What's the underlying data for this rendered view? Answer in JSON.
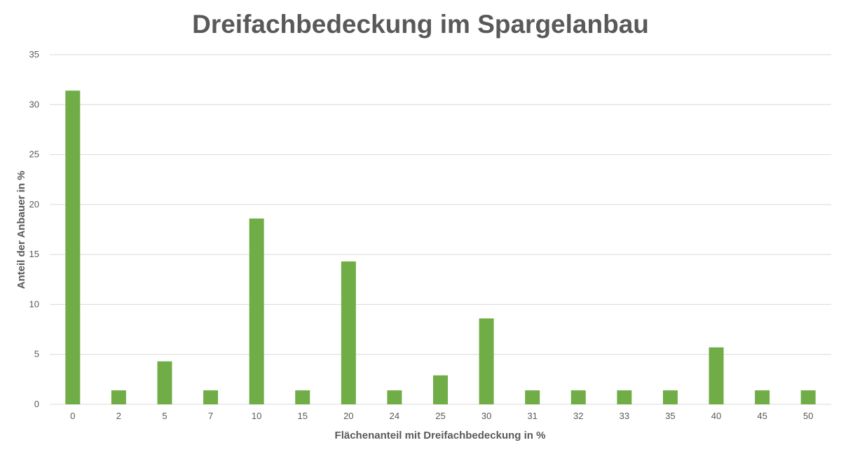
{
  "chart_data": {
    "type": "bar",
    "title": "Dreifachbedeckung im Spargelanbau",
    "xlabel": "Flächenanteil mit Dreifachbedeckung in %",
    "ylabel": "Anteil der Anbauer in %",
    "categories": [
      "0",
      "2",
      "5",
      "7",
      "10",
      "15",
      "20",
      "24",
      "25",
      "30",
      "31",
      "32",
      "33",
      "35",
      "40",
      "45",
      "50"
    ],
    "values": [
      31.4,
      1.4,
      4.3,
      1.4,
      18.6,
      1.4,
      14.3,
      1.4,
      2.9,
      8.6,
      1.4,
      1.4,
      1.4,
      1.4,
      5.7,
      1.4,
      1.4
    ],
    "ylim": [
      0,
      35
    ],
    "yticks": [
      0,
      5,
      10,
      15,
      20,
      25,
      30,
      35
    ],
    "grid": true,
    "bar_color": "#70ad47",
    "grid_color": "#d9d9d9"
  }
}
